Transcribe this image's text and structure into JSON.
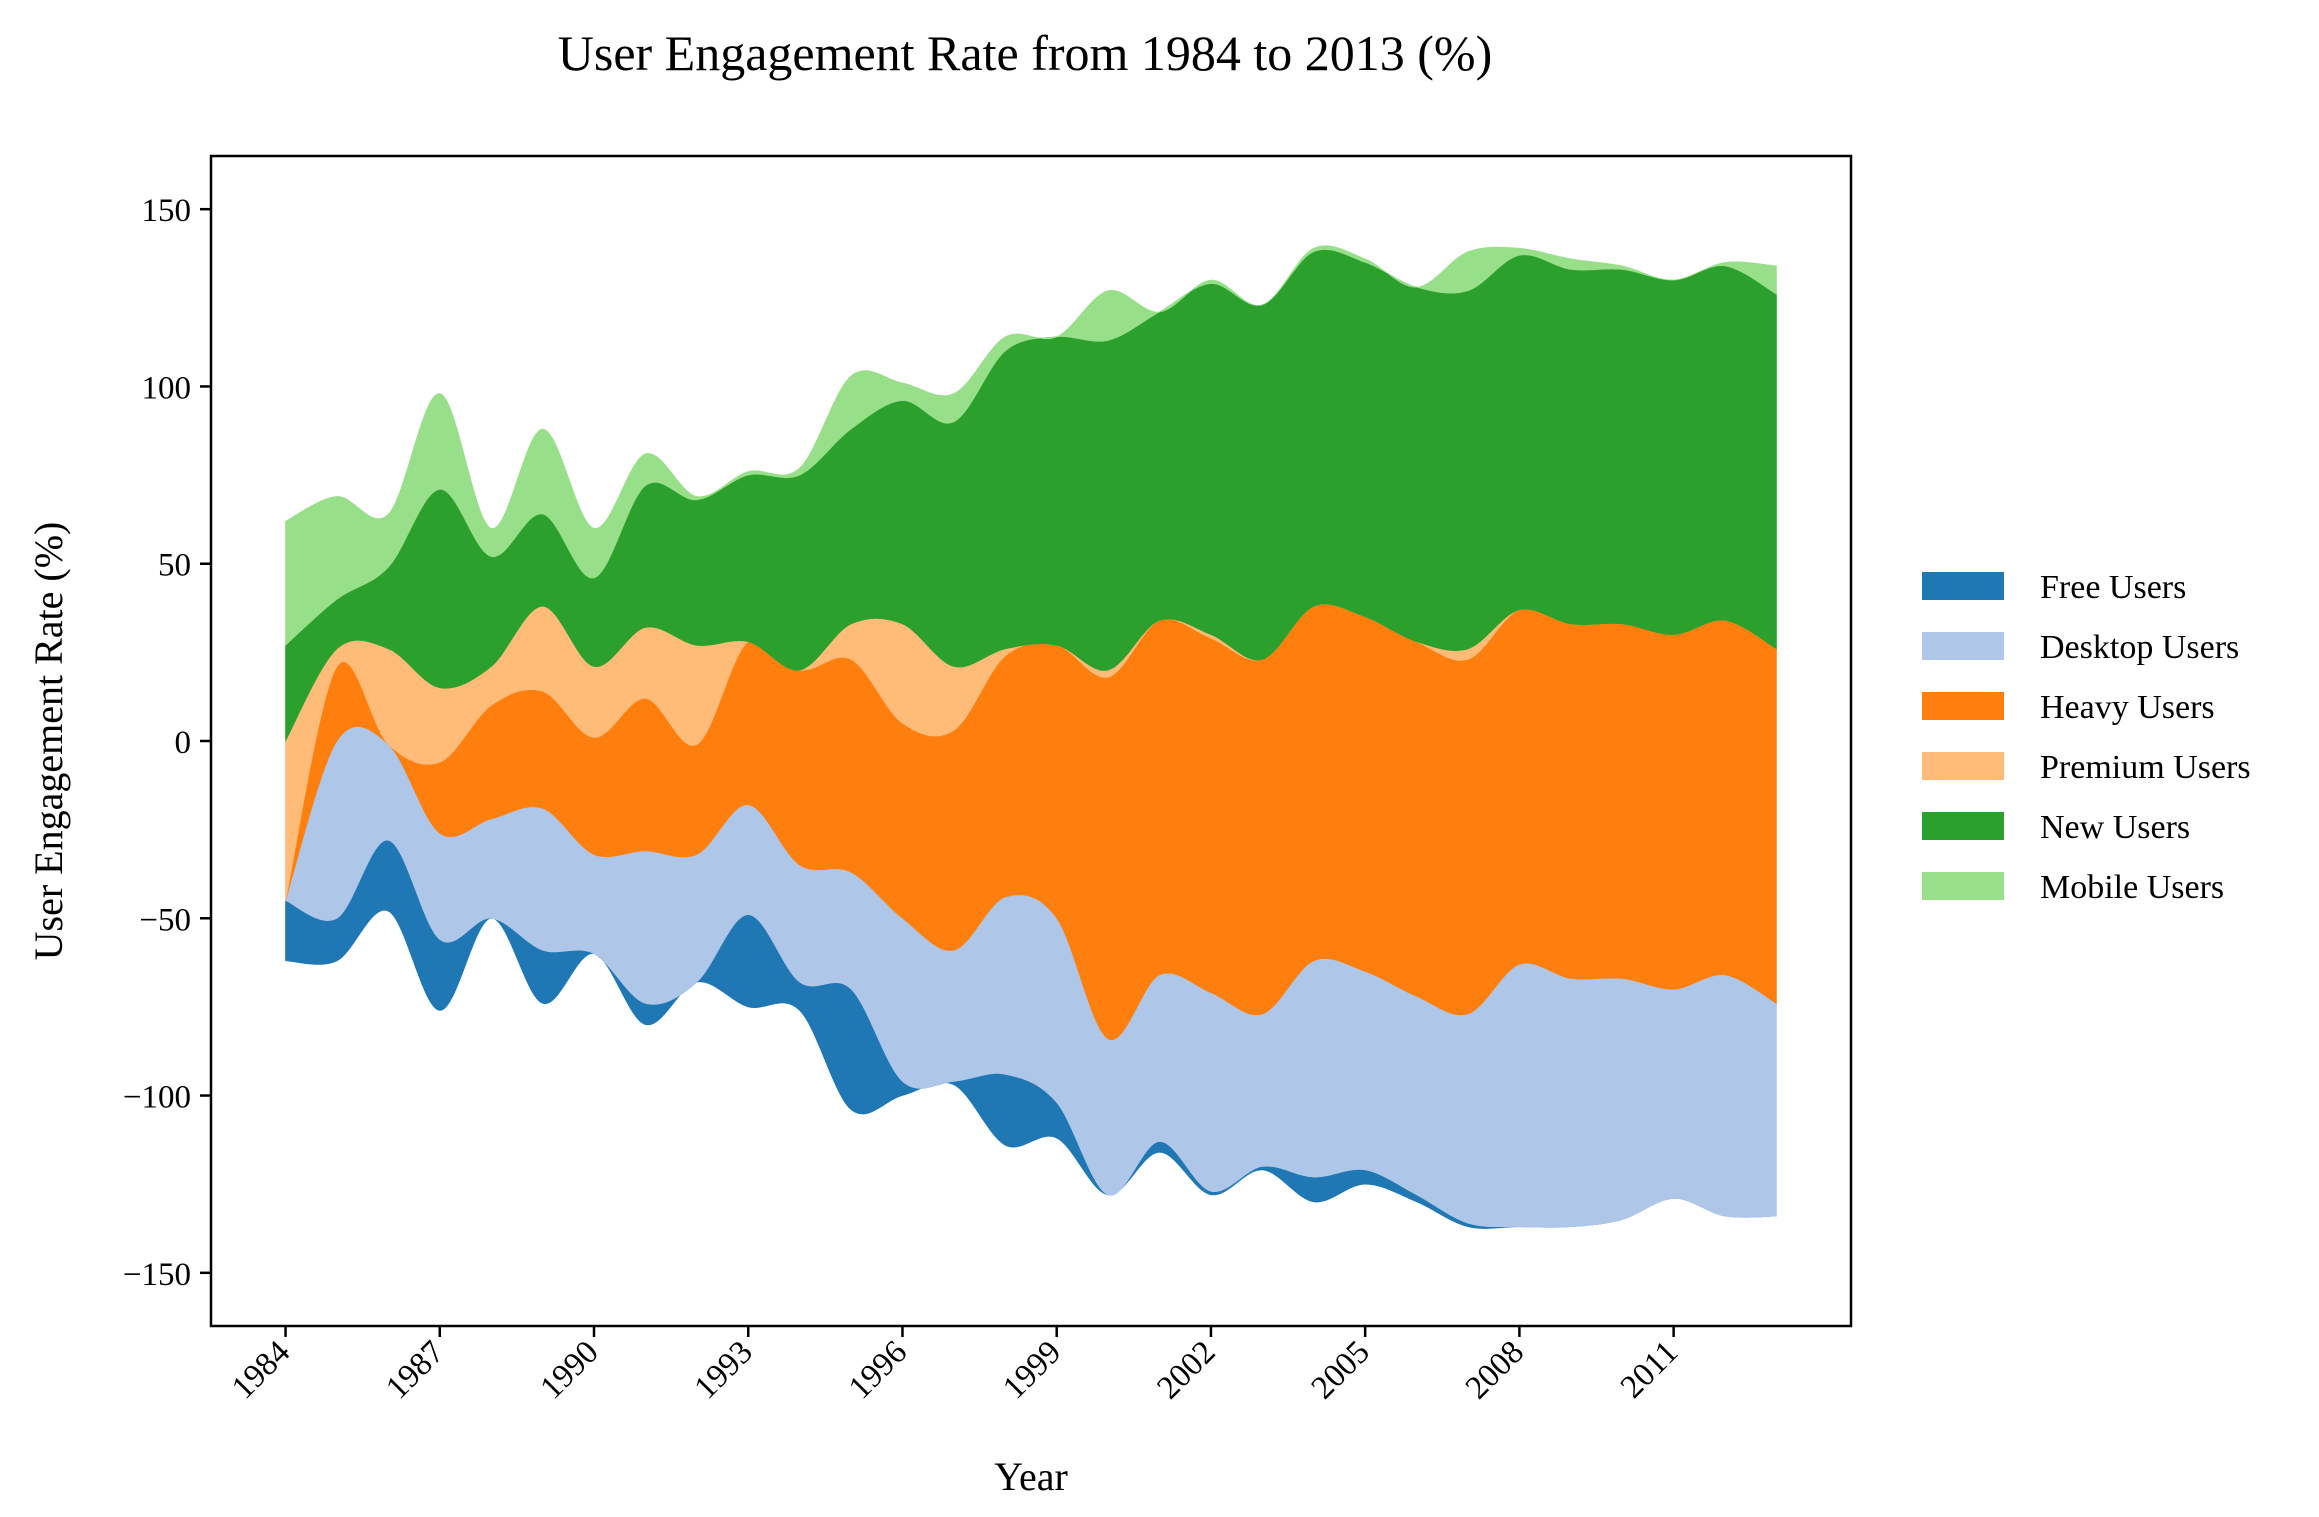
{
  "chart_data": {
    "type": "area",
    "subtype": "streamgraph",
    "title": "User Engagement Rate from 1984 to 2013 (%)",
    "xlabel": "Year",
    "ylabel": "User Engagement Rate (%)",
    "xlim": [
      1982.55,
      2014.45
    ],
    "ylim": [
      -165,
      165
    ],
    "xticks": [
      1984,
      1987,
      1990,
      1993,
      1996,
      1999,
      2002,
      2005,
      2008,
      2011
    ],
    "xtick_labels": [
      "1984",
      "1987",
      "1990",
      "1993",
      "1996",
      "1999",
      "2002",
      "2005",
      "2008",
      "2011"
    ],
    "yticks": [
      -150,
      -100,
      -50,
      0,
      50,
      100,
      150
    ],
    "ytick_labels": [
      "−150",
      "−100",
      "−50",
      "0",
      "50",
      "100",
      "150"
    ],
    "grid": false,
    "legend_position": "right",
    "x": [
      1984,
      1985,
      1986,
      1987,
      1988,
      1989,
      1990,
      1991,
      1992,
      1993,
      1994,
      1995,
      1996,
      1997,
      1998,
      1999,
      2000,
      2001,
      2002,
      2003,
      2004,
      2005,
      2006,
      2007,
      2008,
      2009,
      2010,
      2011,
      2012,
      2013
    ],
    "baseline": [
      -62,
      -62,
      -48,
      -76,
      -50,
      -74,
      -60,
      -80,
      -68,
      -75,
      -76,
      -104,
      -100,
      -97,
      -114,
      -112,
      -128,
      -116,
      -128,
      -121,
      -130,
      -125,
      -130,
      -137,
      -137,
      -137,
      -135,
      -129,
      -134,
      -134
    ],
    "series": [
      {
        "name": "Free Users",
        "color": "#1f77b4",
        "values": [
          17,
          12,
          20,
          20,
          0,
          15,
          0,
          6,
          0,
          26,
          8,
          34,
          4,
          1,
          20,
          10,
          0,
          3,
          1,
          1,
          7,
          4,
          2,
          1,
          0,
          0,
          0,
          0,
          0,
          0
        ]
      },
      {
        "name": "Desktop Users",
        "color": "#aec7e8",
        "values": [
          0,
          50,
          27,
          30,
          28,
          40,
          28,
          43,
          36,
          31,
          33,
          33,
          46,
          37,
          50,
          52,
          44,
          47,
          56,
          43,
          61,
          56,
          56,
          59,
          74,
          70,
          68,
          59,
          68,
          60
        ]
      },
      {
        "name": "Heavy Users",
        "color": "#ff7f0e",
        "values": [
          0,
          21,
          0,
          20,
          32,
          33,
          33,
          43,
          31,
          46,
          55,
          60,
          55,
          62,
          68,
          77,
          102,
          100,
          100,
          100,
          100,
          100,
          100,
          100,
          100,
          100,
          100,
          100,
          100,
          100
        ]
      },
      {
        "name": "Premium Users",
        "color": "#ffbb78",
        "values": [
          45,
          5,
          27,
          21,
          11,
          24,
          20,
          20,
          28,
          0,
          0,
          10,
          28,
          18,
          2,
          0,
          2,
          0,
          1,
          0,
          0,
          0,
          0,
          3,
          0,
          0,
          0,
          0,
          0,
          0
        ]
      },
      {
        "name": "New Users",
        "color": "#2ca02c",
        "values": [
          27,
          14,
          23,
          56,
          31,
          26,
          25,
          40,
          41,
          47,
          55,
          55,
          63,
          69,
          84,
          87,
          93,
          87,
          99,
          100,
          100,
          100,
          100,
          101,
          100,
          100,
          100,
          100,
          100,
          100
        ]
      },
      {
        "name": "Mobile Users",
        "color": "#98df8a",
        "values": [
          35,
          29,
          15,
          27,
          8,
          24,
          14,
          9,
          1,
          1,
          2,
          15,
          5,
          8,
          4,
          0,
          14,
          0,
          1,
          0,
          1,
          1,
          0,
          11,
          2,
          3,
          1,
          0,
          1,
          8
        ]
      }
    ]
  }
}
